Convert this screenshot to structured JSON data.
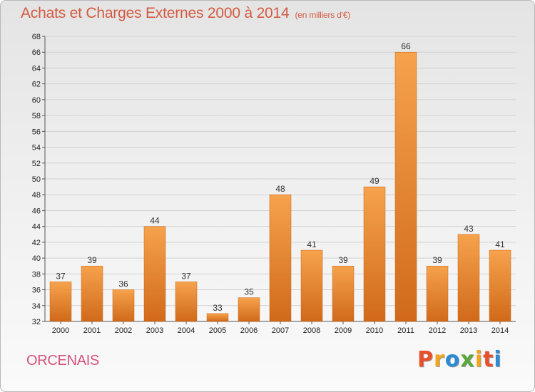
{
  "header": {
    "title": "Achats et Charges Externes 2000 à 2014",
    "subtitle": "(en milliers d'€)"
  },
  "footer": {
    "town": "ORCENAIS",
    "logo_letters": [
      "P",
      "r",
      "o",
      "x",
      "i",
      "t",
      "i"
    ],
    "logo_colors": [
      "#e94f2a",
      "#f3a51d",
      "#2b8bd6",
      "#5aa83a",
      "#f3a51d",
      "#e94f2a",
      "#2b8bd6"
    ]
  },
  "chart_data": {
    "type": "bar",
    "categories": [
      "2000",
      "2001",
      "2002",
      "2003",
      "2004",
      "2005",
      "2006",
      "2007",
      "2008",
      "2009",
      "2010",
      "2011",
      "2012",
      "2013",
      "2014"
    ],
    "values": [
      37,
      39,
      36,
      44,
      37,
      33,
      35,
      48,
      41,
      39,
      49,
      66,
      39,
      43,
      41
    ],
    "title": "Achats et Charges Externes 2000 à 2014",
    "unit": "(en milliers d'€)",
    "ylim": [
      32,
      68
    ],
    "yticks": [
      32,
      34,
      36,
      38,
      40,
      42,
      44,
      46,
      48,
      50,
      52,
      54,
      56,
      58,
      60,
      62,
      64,
      66,
      68
    ],
    "grid": true,
    "bar_color_light": "#f6a24c",
    "bar_color_dark": "#d06a1a"
  }
}
